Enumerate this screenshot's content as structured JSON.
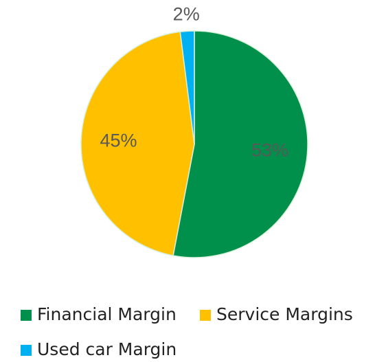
{
  "chart_data": {
    "type": "pie",
    "categories": [
      "Financial Margin",
      "Service Margins",
      "Used car Margin"
    ],
    "values": [
      53,
      45,
      2
    ],
    "value_labels": [
      "53%",
      "45%",
      "2%"
    ],
    "colors": [
      "#00904c",
      "#ffc000",
      "#00b0f0"
    ],
    "legend": "bottom"
  }
}
